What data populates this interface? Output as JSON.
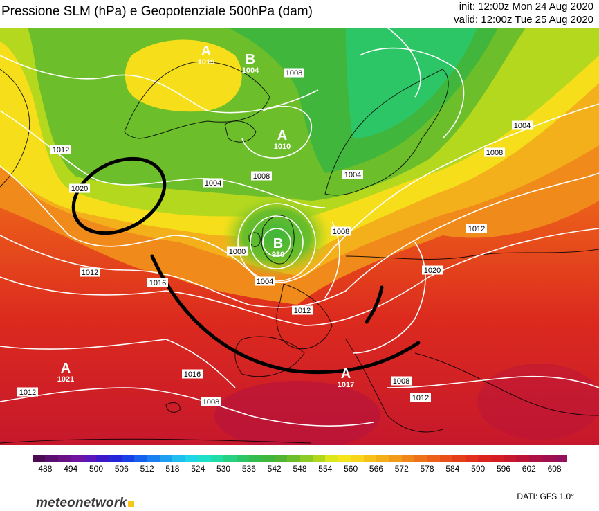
{
  "header": {
    "title": "Pressione SLM (hPa) e Geopotenziale 500hPa (dam)",
    "init": "init: 12:00z Mon 24 Aug 2020",
    "valid": "valid: 12:00z Tue 25 Aug 2020"
  },
  "pressure_centers": [
    {
      "type": "A",
      "value": "1019"
    },
    {
      "type": "B",
      "value": "1004"
    },
    {
      "type": "A",
      "value": "1010"
    },
    {
      "type": "B",
      "value": "980"
    },
    {
      "type": "A",
      "value": "1021"
    },
    {
      "type": "A",
      "value": "1017"
    }
  ],
  "isobar_labels": [
    "1008",
    "1004",
    "1008",
    "1012",
    "1020",
    "1004",
    "1008",
    "1004",
    "1008",
    "1000",
    "1012",
    "1016",
    "1004",
    "1012",
    "1008",
    "1012",
    "1012",
    "1020",
    "1016",
    "1012",
    "1008"
  ],
  "colorbar": {
    "tick_labels": [
      "488",
      "494",
      "500",
      "506",
      "512",
      "518",
      "524",
      "530",
      "536",
      "542",
      "548",
      "554",
      "560",
      "566",
      "572",
      "578",
      "584",
      "590",
      "596",
      "602",
      "608"
    ],
    "min": 485,
    "max": 611,
    "step": 3,
    "colors": [
      "#4a0b53",
      "#5a0e70",
      "#6a1185",
      "#6e14a0",
      "#5a16b8",
      "#3d18c8",
      "#2626d8",
      "#1740e6",
      "#1560ee",
      "#1a80f2",
      "#1ea0f2",
      "#20bff0",
      "#1ed6e6",
      "#1ee0c8",
      "#20dca6",
      "#26d282",
      "#2cc666",
      "#34bc4e",
      "#40b63c",
      "#52b431",
      "#6cbe2a",
      "#8cca24",
      "#b2d81e",
      "#dce81c",
      "#f6e51a",
      "#f8d41a",
      "#f6c21a",
      "#f4ae1a",
      "#f29a1a",
      "#f0861a",
      "#ee721a",
      "#ec601a",
      "#ea4e1a",
      "#e63e1a",
      "#e2301c",
      "#dc241e",
      "#d41e24",
      "#c8182c",
      "#bc1436",
      "#ae1242",
      "#a0104e",
      "#94105a"
    ]
  },
  "branding": {
    "logo": "meteonetwork",
    "credits": "DATI: GFS 1.0°"
  }
}
